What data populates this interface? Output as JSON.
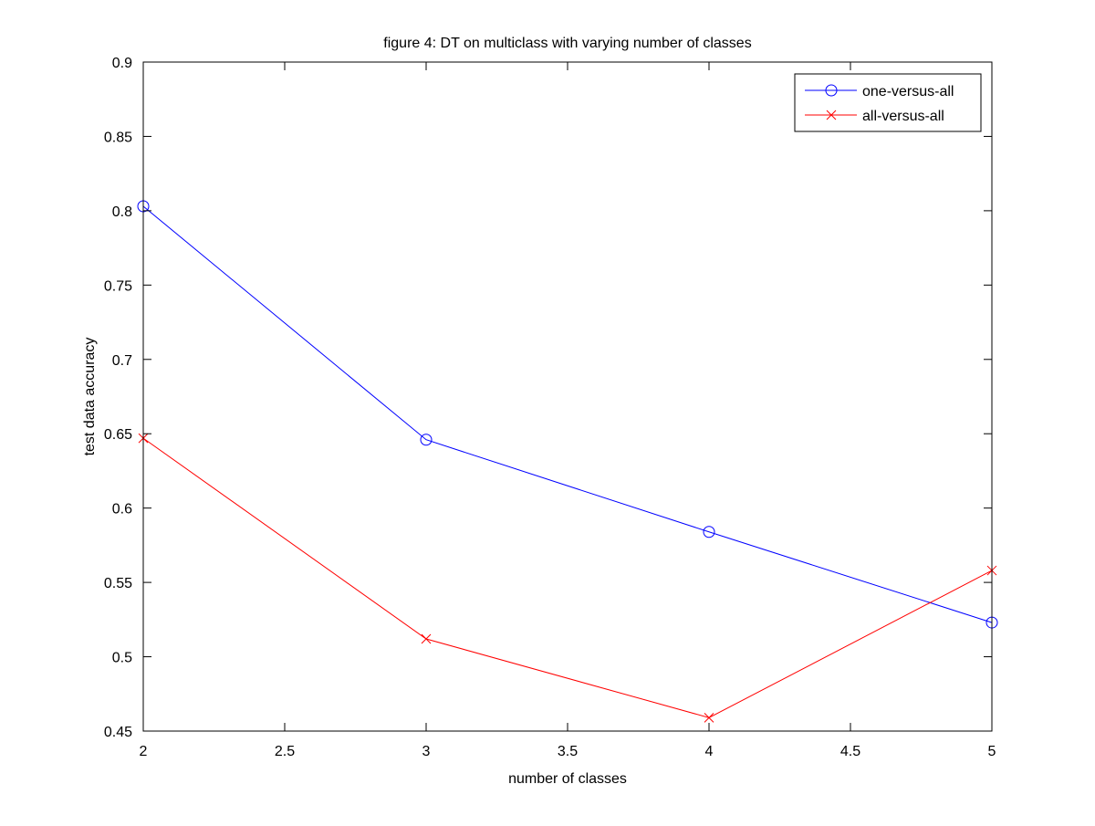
{
  "chart_data": {
    "type": "line",
    "title": "figure 4: DT on multiclass with varying number of classes",
    "xlabel": "number of classes",
    "ylabel": "test data accuracy",
    "xlim": [
      2,
      5
    ],
    "ylim": [
      0.45,
      0.9
    ],
    "xticks": [
      2,
      2.5,
      3,
      3.5,
      4,
      4.5,
      5
    ],
    "xtick_labels": [
      "2",
      "2.5",
      "3",
      "3.5",
      "4",
      "4.5",
      "5"
    ],
    "yticks": [
      0.45,
      0.5,
      0.55,
      0.6,
      0.65,
      0.7,
      0.75,
      0.8,
      0.85,
      0.9
    ],
    "ytick_labels": [
      "0.45",
      "0.5",
      "0.55",
      "0.6",
      "0.65",
      "0.7",
      "0.75",
      "0.8",
      "0.85",
      "0.9"
    ],
    "grid": false,
    "legend_position": "top-right",
    "x": [
      2,
      3,
      4,
      5
    ],
    "series": [
      {
        "name": "one-versus-all",
        "values": [
          0.803,
          0.646,
          0.584,
          0.523
        ],
        "color": "#0000ff",
        "marker": "circle"
      },
      {
        "name": "all-versus-all",
        "values": [
          0.647,
          0.512,
          0.459,
          0.558
        ],
        "color": "#ff0000",
        "marker": "x"
      }
    ]
  }
}
